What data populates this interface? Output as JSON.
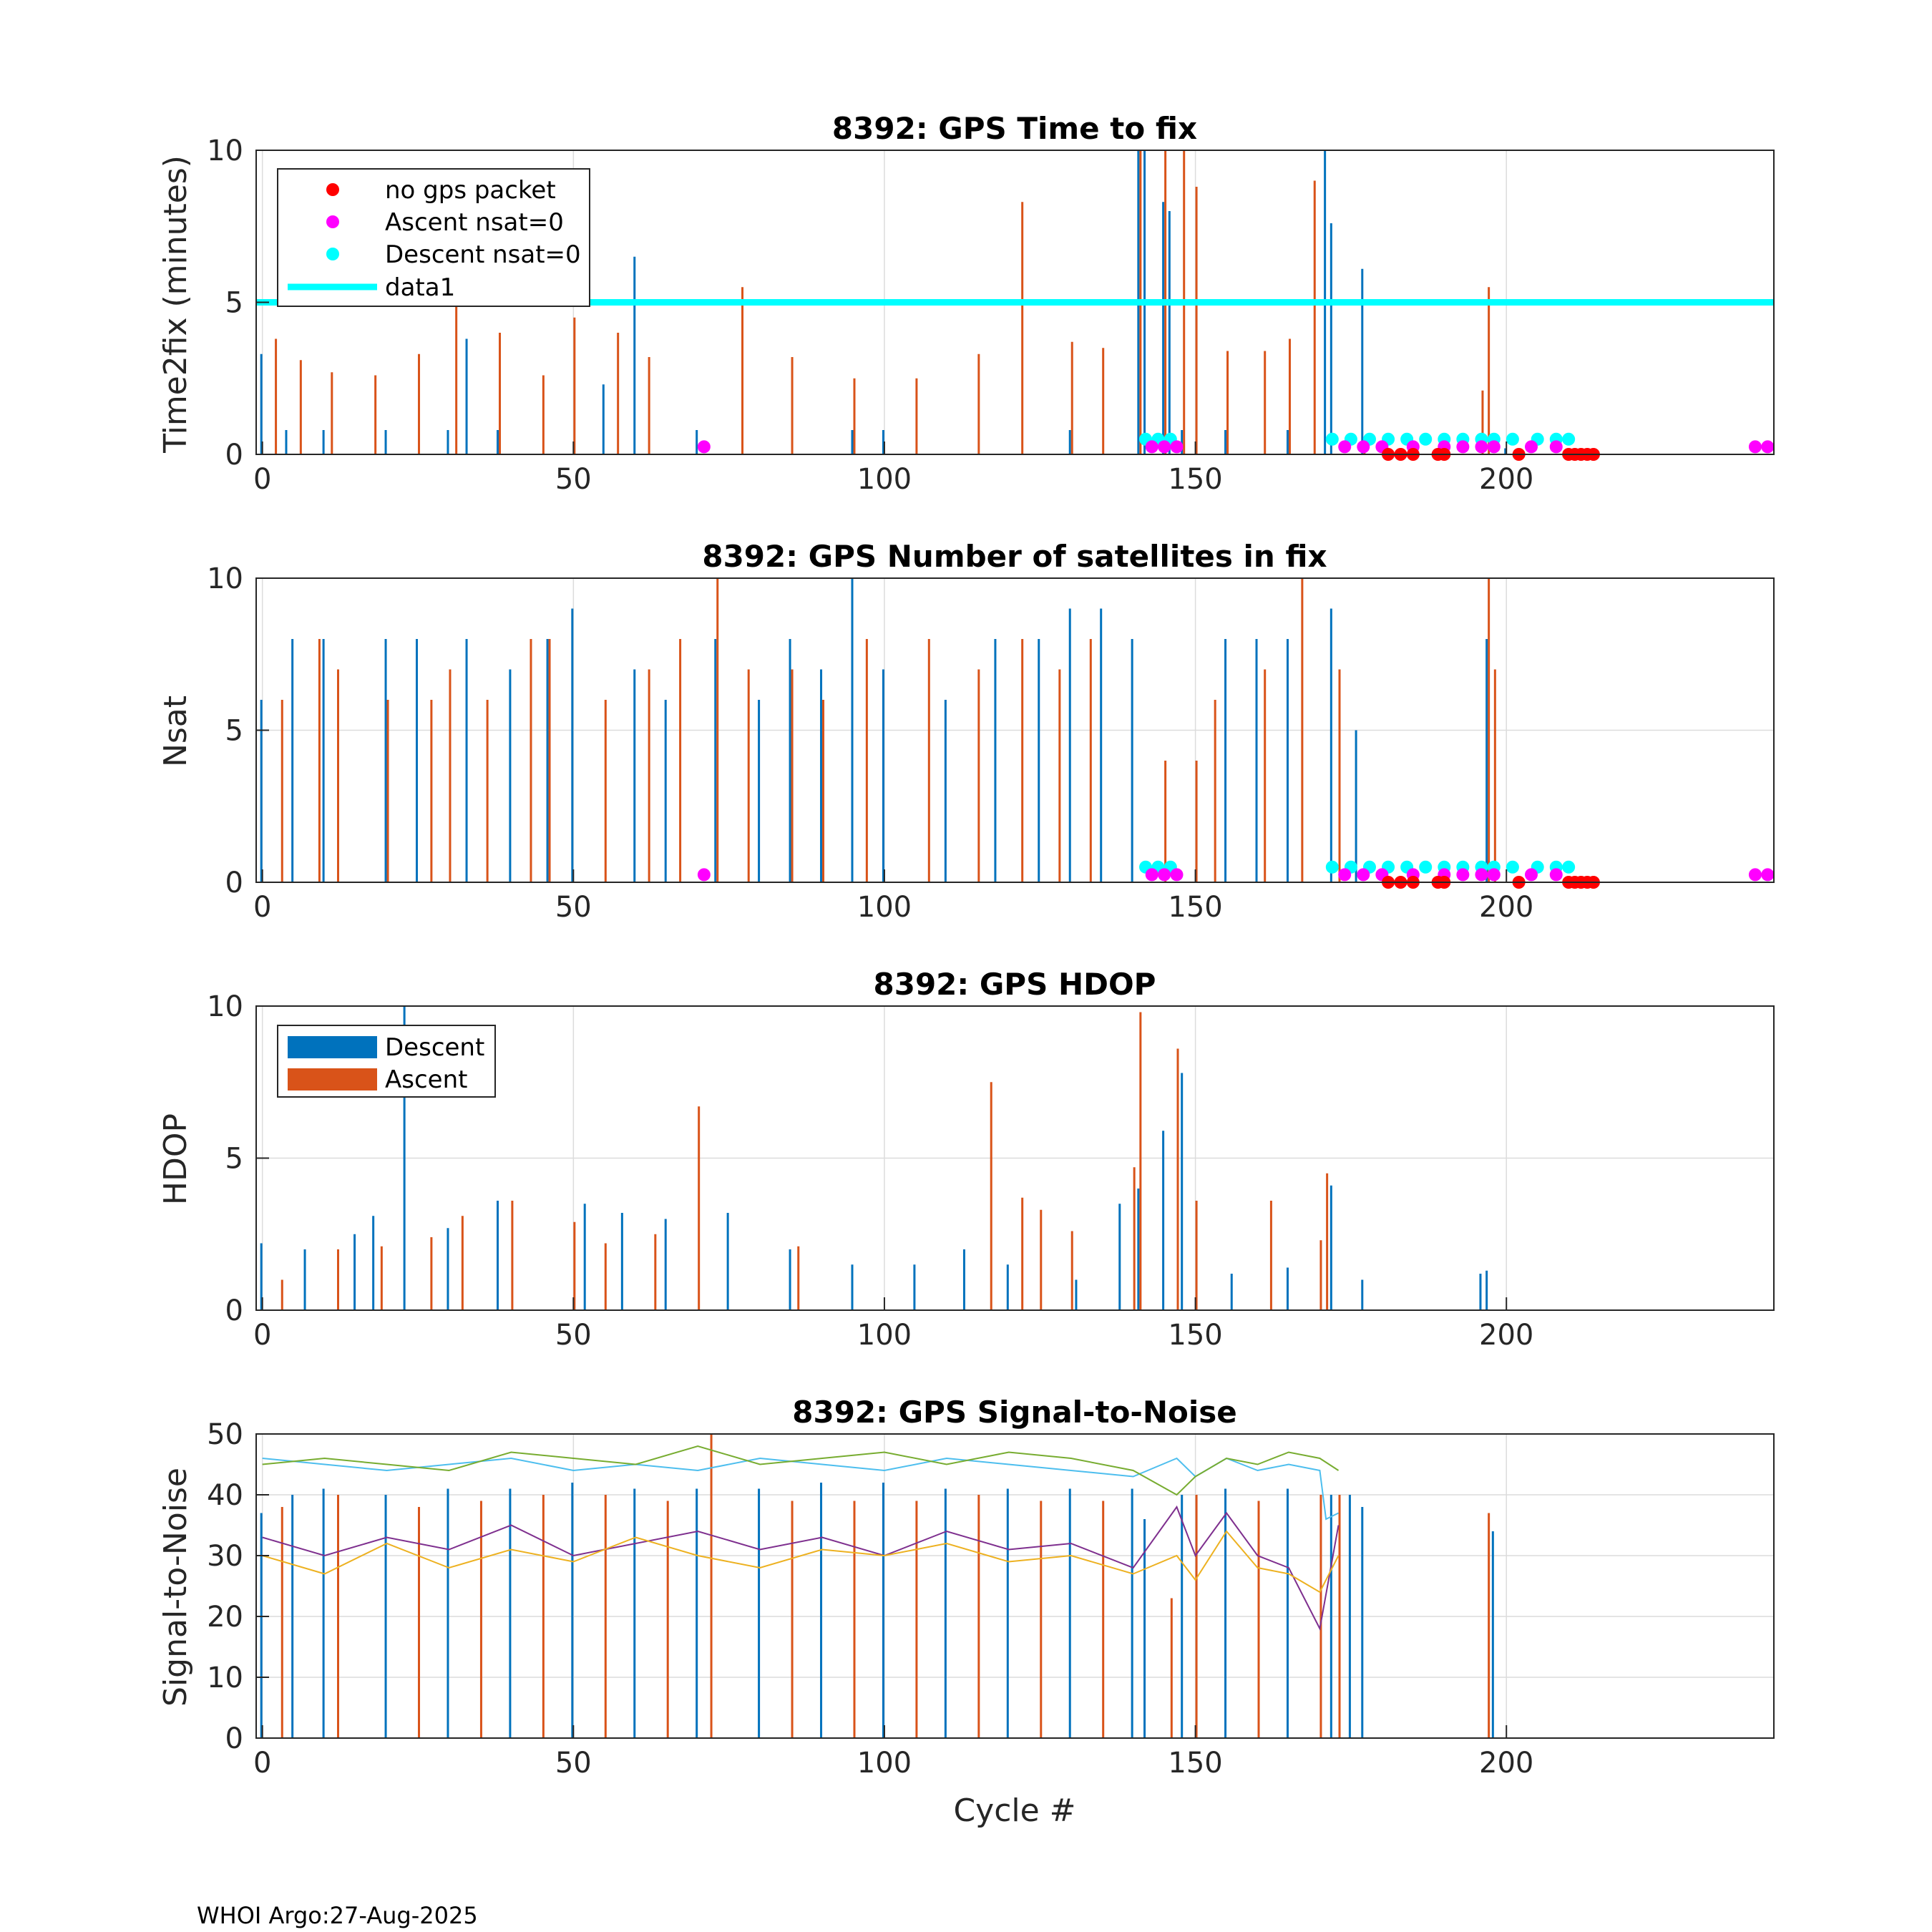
{
  "figure": {
    "footer": "WHOI Argo:27-Aug-2025",
    "xlabel": "Cycle #"
  },
  "colors": {
    "descent": "#0072bd",
    "ascent": "#d95319",
    "no_gps": "#ff0000",
    "ascent_nsat0": "#ff00ff",
    "descent_nsat0": "#00ffff",
    "snr_lines": [
      "#4dbeee",
      "#77ac30",
      "#7e2f8e",
      "#edb120",
      "#d95319"
    ]
  },
  "chart_data": [
    {
      "id": "ttf",
      "type": "bar",
      "title": "8392: GPS Time to fix",
      "ylabel": "Time2fix (minutes)",
      "xlabel": "",
      "xlim": [
        -1,
        243
      ],
      "ylim": [
        0,
        10
      ],
      "xticks": [
        "0",
        "50",
        "100",
        "150",
        "200"
      ],
      "yticks": [
        "0",
        "5",
        "10"
      ],
      "legend": {
        "position": "top-left",
        "entries": [
          "no gps packet",
          "Ascent nsat=0",
          "Descent nsat=0",
          "data1"
        ]
      },
      "reference_line": {
        "name": "data1",
        "y": 5
      },
      "series": [
        {
          "name": "Descent",
          "x": [
            0,
            4,
            10,
            20,
            30,
            33,
            38,
            55,
            60,
            70,
            95,
            100,
            130,
            141,
            142,
            145,
            146,
            148,
            155,
            165,
            171,
            172,
            177,
            185,
            190,
            200
          ],
          "values": [
            3.3,
            0.8,
            0.8,
            0.8,
            0.8,
            3.8,
            0.8,
            2.3,
            6.5,
            0.8,
            0.8,
            0.8,
            0.8,
            10,
            10,
            8.3,
            8.0,
            0.8,
            0.8,
            0.8,
            10,
            7.6,
            6.1,
            0.2,
            0.2,
            0.2
          ]
        },
        {
          "name": "Ascent",
          "x": [
            2,
            6,
            11,
            18,
            25,
            31,
            38,
            45,
            50,
            57,
            62,
            77,
            85,
            95,
            105,
            115,
            122,
            130,
            135,
            141,
            145,
            148,
            150,
            155,
            161,
            165,
            169,
            177,
            185,
            196,
            197
          ],
          "values": [
            3.8,
            3.1,
            2.7,
            2.6,
            3.3,
            5.0,
            4.0,
            2.6,
            4.5,
            4.0,
            3.2,
            5.5,
            3.2,
            2.5,
            2.5,
            3.3,
            8.3,
            3.7,
            3.5,
            10,
            10,
            10,
            8.8,
            3.4,
            3.4,
            3.8,
            9.0,
            0.5,
            0.4,
            2.1,
            5.5
          ]
        }
      ],
      "markers": {
        "no_gps_packet": {
          "x": [
            181,
            183,
            185,
            189,
            190,
            202,
            210,
            211,
            212,
            213,
            214
          ],
          "y": [
            0,
            0,
            0,
            0,
            0,
            0,
            0,
            0,
            0,
            0,
            0
          ]
        },
        "ascent_nsat0": {
          "x": [
            71,
            143,
            145,
            147,
            174,
            177,
            180,
            185,
            190,
            193,
            196,
            198,
            204,
            208,
            240,
            242
          ],
          "y": [
            0.25,
            0.25,
            0.25,
            0.25,
            0.25,
            0.25,
            0.25,
            0.25,
            0.25,
            0.25,
            0.25,
            0.25,
            0.25,
            0.25,
            0.25,
            0.25
          ]
        },
        "descent_nsat0": {
          "x": [
            142,
            144,
            146,
            172,
            175,
            178,
            181,
            184,
            187,
            190,
            193,
            196,
            198,
            201,
            205,
            208,
            210
          ],
          "y": [
            0.5,
            0.5,
            0.5,
            0.5,
            0.5,
            0.5,
            0.5,
            0.5,
            0.5,
            0.5,
            0.5,
            0.5,
            0.5,
            0.5,
            0.5,
            0.5,
            0.5
          ]
        }
      }
    },
    {
      "id": "nsat",
      "type": "bar",
      "title": "8392: GPS Number of satellites in fix",
      "ylabel": "Nsat",
      "xlabel": "",
      "xlim": [
        -1,
        243
      ],
      "ylim": [
        0,
        10
      ],
      "xticks": [
        "0",
        "50",
        "100",
        "150",
        "200"
      ],
      "yticks": [
        "0",
        "5",
        "10"
      ],
      "series": [
        {
          "name": "Descent",
          "x": [
            0,
            5,
            10,
            20,
            25,
            33,
            40,
            46,
            50,
            60,
            65,
            73,
            80,
            85,
            90,
            95,
            100,
            110,
            118,
            125,
            130,
            135,
            140,
            155,
            160,
            165,
            172,
            176,
            197
          ],
          "values": [
            6,
            8,
            8,
            8,
            8,
            8,
            7,
            8,
            9,
            7,
            6,
            8,
            6,
            8,
            7,
            10,
            7,
            6,
            8,
            8,
            9,
            9,
            8,
            8,
            8,
            8,
            9,
            5,
            8
          ]
        },
        {
          "name": "Ascent",
          "x": [
            3,
            9,
            12,
            20,
            27,
            30,
            36,
            43,
            46,
            55,
            62,
            67,
            73,
            78,
            85,
            90,
            97,
            107,
            115,
            122,
            128,
            133,
            145,
            150,
            153,
            161,
            167,
            173,
            197,
            198
          ],
          "values": [
            6,
            8,
            7,
            6,
            6,
            7,
            6,
            8,
            8,
            6,
            7,
            8,
            10,
            7,
            7,
            6,
            8,
            8,
            7,
            8,
            7,
            8,
            4,
            4,
            6,
            7,
            10,
            7,
            10,
            7
          ]
        }
      ],
      "markers": {
        "no_gps_packet": {
          "x": [
            181,
            183,
            185,
            189,
            190,
            202,
            210,
            211,
            212,
            213,
            214
          ],
          "y": [
            0,
            0,
            0,
            0,
            0,
            0,
            0,
            0,
            0,
            0,
            0
          ]
        },
        "ascent_nsat0": {
          "x": [
            71,
            143,
            145,
            147,
            174,
            177,
            180,
            185,
            190,
            193,
            196,
            198,
            204,
            208,
            240,
            242
          ],
          "y": [
            0.25,
            0.25,
            0.25,
            0.25,
            0.25,
            0.25,
            0.25,
            0.25,
            0.25,
            0.25,
            0.25,
            0.25,
            0.25,
            0.25,
            0.25,
            0.25
          ]
        },
        "descent_nsat0": {
          "x": [
            142,
            144,
            146,
            172,
            175,
            178,
            181,
            184,
            187,
            190,
            193,
            196,
            198,
            201,
            205,
            208,
            210
          ],
          "y": [
            0.5,
            0.5,
            0.5,
            0.5,
            0.5,
            0.5,
            0.5,
            0.5,
            0.5,
            0.5,
            0.5,
            0.5,
            0.5,
            0.5,
            0.5,
            0.5,
            0.5
          ]
        }
      }
    },
    {
      "id": "hdop",
      "type": "bar",
      "title": "8392: GPS HDOP",
      "ylabel": "HDOP",
      "xlabel": "",
      "xlim": [
        -1,
        243
      ],
      "ylim": [
        0,
        10
      ],
      "xticks": [
        "0",
        "50",
        "100",
        "150",
        "200"
      ],
      "yticks": [
        "0",
        "5",
        "10"
      ],
      "legend": {
        "position": "top-left",
        "entries": [
          "Descent",
          "Ascent"
        ]
      },
      "series": [
        {
          "name": "Descent",
          "x": [
            0,
            7,
            15,
            18,
            23,
            30,
            38,
            52,
            58,
            65,
            75,
            85,
            95,
            105,
            113,
            120,
            131,
            138,
            141,
            145,
            148,
            156,
            165,
            172,
            177,
            196,
            197
          ],
          "values": [
            2.2,
            2.0,
            2.5,
            3.1,
            10,
            2.7,
            3.6,
            3.5,
            3.2,
            3.0,
            3.2,
            2.0,
            1.5,
            1.5,
            2.0,
            1.5,
            1.0,
            3.5,
            4.0,
            5.9,
            7.8,
            1.2,
            1.4,
            4.1,
            1.0,
            1.2,
            1.3
          ]
        },
        {
          "name": "Ascent",
          "x": [
            3,
            12,
            19,
            27,
            32,
            40,
            50,
            55,
            63,
            70,
            86,
            117,
            122,
            125,
            130,
            140,
            141,
            147,
            150,
            162,
            170,
            171
          ],
          "values": [
            1.0,
            2.0,
            2.1,
            2.4,
            3.1,
            3.6,
            2.9,
            2.2,
            2.5,
            6.7,
            2.1,
            7.5,
            3.7,
            3.3,
            2.6,
            4.7,
            9.8,
            8.6,
            3.6,
            3.6,
            2.3,
            4.5
          ]
        }
      ]
    },
    {
      "id": "snr",
      "type": "line",
      "title": "8392: GPS Signal-to-Noise",
      "ylabel": "Signal-to-Noise",
      "xlabel": "Cycle #",
      "xlim": [
        -1,
        243
      ],
      "ylim": [
        0,
        50
      ],
      "xticks": [
        "0",
        "50",
        "100",
        "150",
        "200"
      ],
      "yticks": [
        "0",
        "10",
        "20",
        "30",
        "40",
        "50"
      ],
      "series": [
        {
          "name": "snr1",
          "x": [
            0,
            10,
            20,
            30,
            40,
            50,
            60,
            70,
            80,
            90,
            100,
            110,
            120,
            130,
            140,
            147,
            150,
            155,
            160,
            165,
            170,
            171,
            173
          ],
          "values": [
            46,
            45,
            44,
            45,
            46,
            44,
            45,
            44,
            46,
            45,
            44,
            46,
            45,
            44,
            43,
            46,
            43,
            46,
            44,
            45,
            44,
            36,
            37
          ]
        },
        {
          "name": "snr2",
          "x": [
            0,
            10,
            20,
            30,
            40,
            50,
            60,
            70,
            80,
            90,
            100,
            110,
            120,
            130,
            140,
            147,
            150,
            155,
            160,
            165,
            170,
            173
          ],
          "values": [
            45,
            46,
            45,
            44,
            47,
            46,
            45,
            48,
            45,
            46,
            47,
            45,
            47,
            46,
            44,
            40,
            43,
            46,
            45,
            47,
            46,
            44
          ]
        },
        {
          "name": "snr3",
          "x": [
            0,
            10,
            20,
            30,
            40,
            50,
            60,
            70,
            80,
            90,
            100,
            110,
            120,
            130,
            140,
            147,
            150,
            155,
            160,
            165,
            170,
            173
          ],
          "values": [
            33,
            30,
            33,
            31,
            35,
            30,
            32,
            34,
            31,
            33,
            30,
            34,
            31,
            32,
            28,
            38,
            30,
            37,
            30,
            28,
            18,
            35
          ]
        },
        {
          "name": "snr4",
          "x": [
            0,
            10,
            20,
            30,
            40,
            50,
            60,
            70,
            80,
            90,
            100,
            110,
            120,
            130,
            140,
            147,
            150,
            155,
            160,
            165,
            170,
            173
          ],
          "values": [
            30,
            27,
            32,
            28,
            31,
            29,
            33,
            30,
            28,
            31,
            30,
            32,
            29,
            30,
            27,
            30,
            26,
            34,
            28,
            27,
            24,
            30
          ]
        }
      ],
      "bars": [
        {
          "name": "Descent",
          "x": [
            0,
            5,
            10,
            20,
            30,
            40,
            50,
            60,
            70,
            80,
            90,
            100,
            110,
            120,
            130,
            140,
            142,
            148,
            155,
            165,
            172,
            175,
            177,
            198
          ],
          "values": [
            37,
            40,
            41,
            40,
            41,
            41,
            42,
            41,
            41,
            41,
            42,
            42,
            41,
            41,
            41,
            41,
            36,
            40,
            41,
            41,
            40,
            40,
            38,
            34
          ]
        },
        {
          "name": "Ascent",
          "x": [
            3,
            12,
            25,
            35,
            45,
            55,
            65,
            72,
            85,
            95,
            105,
            115,
            125,
            135,
            146,
            150,
            160,
            170,
            173,
            197
          ],
          "values": [
            38,
            40,
            38,
            39,
            40,
            40,
            39,
            50,
            39,
            39,
            39,
            40,
            39,
            39,
            23,
            40,
            39,
            40,
            40,
            37
          ]
        }
      ]
    }
  ]
}
